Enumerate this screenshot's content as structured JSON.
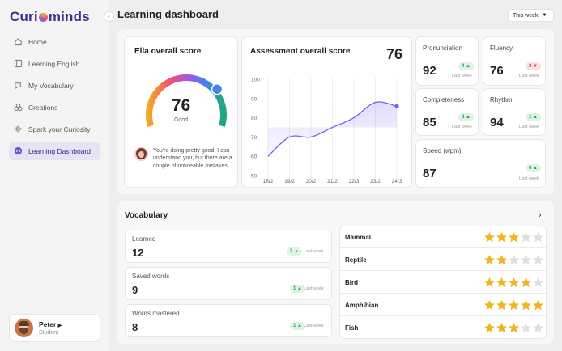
{
  "sidebar": {
    "logo": {
      "pre": "Curi",
      "post": "minds"
    },
    "items": [
      {
        "label": "Home",
        "icon": "home-icon"
      },
      {
        "label": "Learning English",
        "icon": "book-icon"
      },
      {
        "label": "My Vocabulary",
        "icon": "chat-icon"
      },
      {
        "label": "Creations",
        "icon": "creations-icon"
      },
      {
        "label": "Spark your Curiosity",
        "icon": "waveform-icon"
      },
      {
        "label": "Learning Dashboard",
        "icon": "dashboard-icon",
        "active": true
      }
    ],
    "profile": {
      "name": "Peter",
      "role": "Student"
    }
  },
  "header": {
    "title": "Learning dashboard",
    "period": "This week"
  },
  "overall": {
    "title": "Ella overall score",
    "score": "76",
    "score_value": 76,
    "label": "Good",
    "feedback": "You're doing pretty good! I can understand you, but there are a couple of noticeable mistakes"
  },
  "assessment": {
    "title": "Assessment overall score",
    "score": "76"
  },
  "chart_data": {
    "type": "area",
    "title": "Assessment overall score",
    "categories": [
      "18/2",
      "19/2",
      "20/2",
      "21/2",
      "22/3",
      "23/2",
      "24/3"
    ],
    "values": [
      60,
      70,
      70,
      75,
      80,
      88,
      86
    ],
    "y_ticks": [
      "50",
      "60",
      "70",
      "80",
      "90",
      "100"
    ],
    "ylim": [
      50,
      100
    ],
    "grid": "vertical",
    "color": "#7b5cf5"
  },
  "metrics": [
    {
      "title": "Pronunciation",
      "value": "92",
      "delta": "4",
      "direction": "up",
      "note": "Last week"
    },
    {
      "title": "Fluency",
      "value": "76",
      "delta": "2",
      "direction": "down",
      "note": "Last week"
    },
    {
      "title": "Completeness",
      "value": "85",
      "delta": "3",
      "direction": "up",
      "note": "Last week"
    },
    {
      "title": "Rhythm",
      "value": "94",
      "delta": "1",
      "direction": "up",
      "note": "Last week"
    },
    {
      "title": "Speed (wpm)",
      "value": "87",
      "delta": "6",
      "direction": "up",
      "note": "Last week"
    }
  ],
  "vocabulary": {
    "title": "Vocabulary",
    "stats": [
      {
        "label": "Learned",
        "value": "12",
        "delta": "2",
        "note": "Last week"
      },
      {
        "label": "Saved words",
        "value": "9",
        "delta": "1",
        "note": "Last week"
      },
      {
        "label": "Words mastered",
        "value": "8",
        "delta": "1",
        "note": "Last week"
      }
    ],
    "animals": [
      {
        "name": "Mammal",
        "stars": 3
      },
      {
        "name": "Reptile",
        "stars": 2
      },
      {
        "name": "Bird",
        "stars": 4
      },
      {
        "name": "Amphibian",
        "stars": 5
      },
      {
        "name": "Fish",
        "stars": 3
      }
    ],
    "max_stars": 5
  },
  "colors": {
    "accent": "#3b2f8f",
    "up": "#2aa257",
    "down": "#d94848",
    "star": "#f2b51f",
    "star_empty": "#e0e0e3"
  }
}
